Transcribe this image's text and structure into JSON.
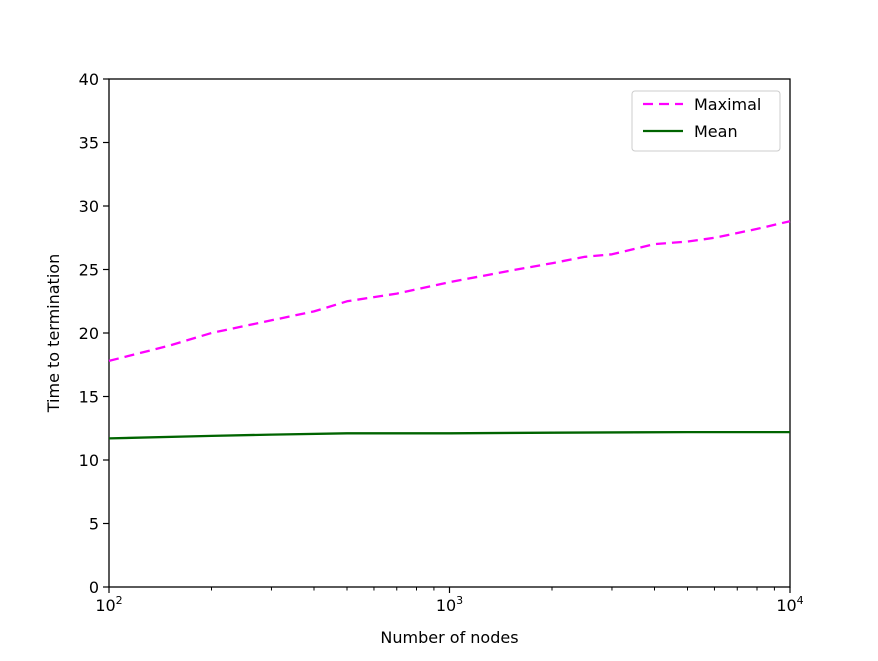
{
  "chart_data": {
    "type": "line",
    "xlabel": "Number of nodes",
    "ylabel": "Time to termination",
    "xscale": "log",
    "xlim": [
      100,
      10000
    ],
    "ylim": [
      0,
      40
    ],
    "x_ticks": [
      {
        "value": 100,
        "base": "10",
        "exp": "2"
      },
      {
        "value": 1000,
        "base": "10",
        "exp": "3"
      },
      {
        "value": 10000,
        "base": "10",
        "exp": "4"
      }
    ],
    "y_ticks": [
      "0",
      "5",
      "10",
      "15",
      "20",
      "25",
      "30",
      "35",
      "40"
    ],
    "grid": false,
    "legend_position": "top-right",
    "series": [
      {
        "name": "Maximal",
        "color": "#ff00ff",
        "style": "dashed",
        "x": [
          100,
          150,
          200,
          300,
          400,
          500,
          700,
          1000,
          1500,
          2000,
          2500,
          3000,
          4000,
          5000,
          6000,
          8000,
          10000
        ],
        "y": [
          17.8,
          19.0,
          20.0,
          21.0,
          21.7,
          22.5,
          23.1,
          24.0,
          24.9,
          25.5,
          26.0,
          26.2,
          27.0,
          27.2,
          27.5,
          28.2,
          28.8
        ]
      },
      {
        "name": "Mean",
        "color": "#006400",
        "style": "solid",
        "x": [
          100,
          200,
          300,
          500,
          1000,
          2000,
          5000,
          10000
        ],
        "y": [
          11.7,
          11.9,
          12.0,
          12.1,
          12.1,
          12.15,
          12.2,
          12.2
        ]
      }
    ]
  }
}
